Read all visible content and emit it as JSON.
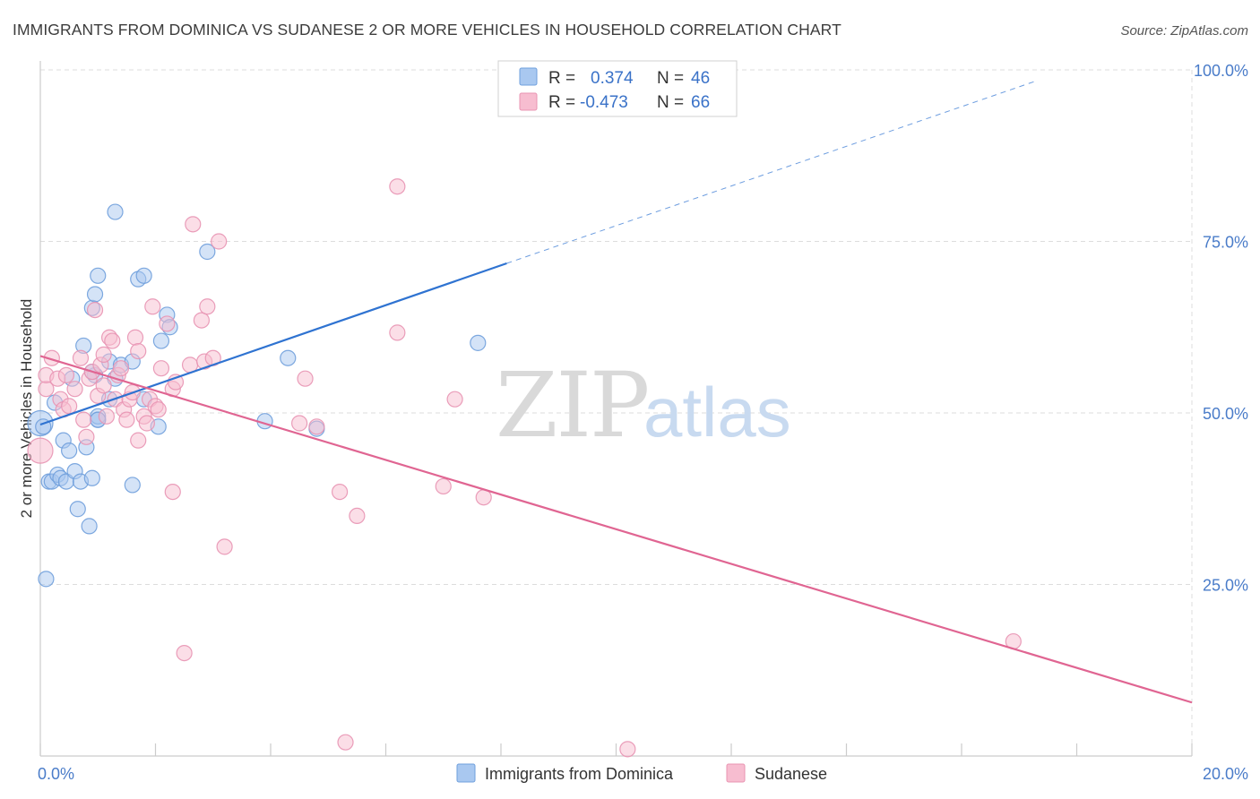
{
  "title": "IMMIGRANTS FROM DOMINICA VS SUDANESE 2 OR MORE VEHICLES IN HOUSEHOLD CORRELATION CHART",
  "source": "Source: ZipAtlas.com",
  "watermark": {
    "zip": "ZIP",
    "atlas": "atlas"
  },
  "colors": {
    "blue_fill": "#a9c8f0",
    "blue_stroke": "#6f9fdc",
    "blue_line": "#2f73d1",
    "pink_fill": "#f7bdd0",
    "pink_stroke": "#e894b2",
    "pink_line": "#e06592",
    "grid": "#dddddd",
    "tick_text": "#4a7cc9"
  },
  "legend": {
    "r_label": "R =",
    "n_label": "N =",
    "rows": [
      {
        "r": "0.374",
        "n": "46"
      },
      {
        "r": "-0.473",
        "n": "66"
      }
    ]
  },
  "chart_data": {
    "type": "scatter",
    "title": "IMMIGRANTS FROM DOMINICA VS SUDANESE 2 OR MORE VEHICLES IN HOUSEHOLD CORRELATION CHART",
    "xlabel": "",
    "ylabel": "2 or more Vehicles in Household",
    "xlim": [
      0,
      20
    ],
    "ylim": [
      0,
      100
    ],
    "x_tick_labels": [
      "0.0%",
      "20.0%"
    ],
    "y_ticks": [
      25,
      50,
      75,
      100
    ],
    "y_tick_labels": [
      "25.0%",
      "50.0%",
      "75.0%",
      "100.0%"
    ],
    "series": [
      {
        "name": "Immigrants from Dominica",
        "r": 0.374,
        "n": 46,
        "trend": {
          "x0": 0,
          "y0": 48.3,
          "x1": 8.1,
          "y1": 71.8,
          "dash_to_x": 17.3,
          "dash_to_y": 98.4
        },
        "points": [
          [
            0.0,
            48.5
          ],
          [
            0.05,
            48.0
          ],
          [
            0.1,
            25.8
          ],
          [
            0.15,
            40.0
          ],
          [
            0.2,
            40.0
          ],
          [
            0.25,
            51.5
          ],
          [
            0.3,
            41.0
          ],
          [
            0.35,
            40.5
          ],
          [
            0.4,
            46.0
          ],
          [
            0.45,
            40.0
          ],
          [
            0.5,
            44.5
          ],
          [
            0.55,
            55.0
          ],
          [
            0.6,
            41.5
          ],
          [
            0.65,
            36.0
          ],
          [
            0.7,
            40.0
          ],
          [
            0.75,
            59.8
          ],
          [
            0.8,
            45.0
          ],
          [
            0.85,
            33.5
          ],
          [
            0.9,
            65.3
          ],
          [
            0.95,
            55.5
          ],
          [
            0.9,
            56.0
          ],
          [
            0.9,
            40.5
          ],
          [
            0.95,
            67.3
          ],
          [
            1.0,
            49.0
          ],
          [
            1.0,
            49.5
          ],
          [
            1.0,
            49.0
          ],
          [
            1.0,
            70.0
          ],
          [
            1.2,
            52.0
          ],
          [
            1.2,
            57.5
          ],
          [
            1.3,
            55.0
          ],
          [
            1.3,
            79.3
          ],
          [
            1.4,
            57.0
          ],
          [
            1.6,
            57.5
          ],
          [
            1.6,
            39.5
          ],
          [
            1.7,
            69.5
          ],
          [
            1.8,
            70.0
          ],
          [
            1.8,
            52.0
          ],
          [
            2.05,
            48.0
          ],
          [
            2.1,
            60.5
          ],
          [
            2.2,
            64.3
          ],
          [
            2.25,
            62.5
          ],
          [
            2.9,
            73.5
          ],
          [
            3.9,
            48.8
          ],
          [
            4.3,
            58.0
          ],
          [
            4.8,
            47.7
          ],
          [
            7.6,
            60.2
          ]
        ]
      },
      {
        "name": "Sudanese",
        "r": -0.473,
        "n": 66,
        "trend": {
          "x0": 0,
          "y0": 58.3,
          "x1": 20,
          "y1": 7.8
        },
        "points": [
          [
            0.0,
            44.5
          ],
          [
            0.1,
            53.5
          ],
          [
            0.1,
            55.5
          ],
          [
            0.2,
            58.0
          ],
          [
            0.3,
            55.0
          ],
          [
            0.35,
            52.0
          ],
          [
            0.4,
            50.5
          ],
          [
            0.45,
            55.5
          ],
          [
            0.5,
            51.0
          ],
          [
            0.6,
            53.5
          ],
          [
            0.7,
            58.0
          ],
          [
            0.75,
            49.0
          ],
          [
            0.8,
            46.5
          ],
          [
            0.85,
            55.0
          ],
          [
            0.9,
            56.0
          ],
          [
            0.95,
            65.0
          ],
          [
            1.0,
            52.5
          ],
          [
            1.05,
            57.0
          ],
          [
            1.1,
            54.0
          ],
          [
            1.1,
            58.5
          ],
          [
            1.15,
            49.5
          ],
          [
            1.2,
            61.0
          ],
          [
            1.25,
            60.5
          ],
          [
            1.3,
            52.0
          ],
          [
            1.35,
            55.5
          ],
          [
            1.4,
            56.5
          ],
          [
            1.45,
            50.5
          ],
          [
            1.5,
            49.0
          ],
          [
            1.55,
            52.0
          ],
          [
            1.6,
            53.0
          ],
          [
            1.65,
            61.0
          ],
          [
            1.7,
            59.0
          ],
          [
            1.7,
            46.0
          ],
          [
            1.8,
            49.5
          ],
          [
            1.85,
            48.5
          ],
          [
            1.9,
            52.0
          ],
          [
            1.95,
            65.5
          ],
          [
            2.0,
            51.0
          ],
          [
            2.05,
            50.5
          ],
          [
            2.1,
            56.5
          ],
          [
            2.2,
            63.0
          ],
          [
            2.3,
            53.5
          ],
          [
            2.35,
            54.5
          ],
          [
            2.3,
            38.5
          ],
          [
            2.5,
            15.0
          ],
          [
            2.6,
            57.0
          ],
          [
            2.65,
            77.5
          ],
          [
            2.8,
            63.5
          ],
          [
            2.85,
            57.5
          ],
          [
            2.9,
            65.5
          ],
          [
            3.1,
            75.0
          ],
          [
            3.2,
            30.5
          ],
          [
            3.0,
            58.0
          ],
          [
            4.5,
            48.5
          ],
          [
            4.6,
            55.0
          ],
          [
            5.2,
            38.5
          ],
          [
            5.3,
            2.0
          ],
          [
            5.5,
            35.0
          ],
          [
            6.2,
            83.0
          ],
          [
            6.2,
            61.7
          ],
          [
            7.0,
            39.3
          ],
          [
            7.7,
            37.7
          ],
          [
            10.2,
            1.0
          ],
          [
            16.9,
            16.7
          ],
          [
            7.2,
            52.0
          ],
          [
            4.8,
            48.0
          ]
        ]
      }
    ]
  }
}
